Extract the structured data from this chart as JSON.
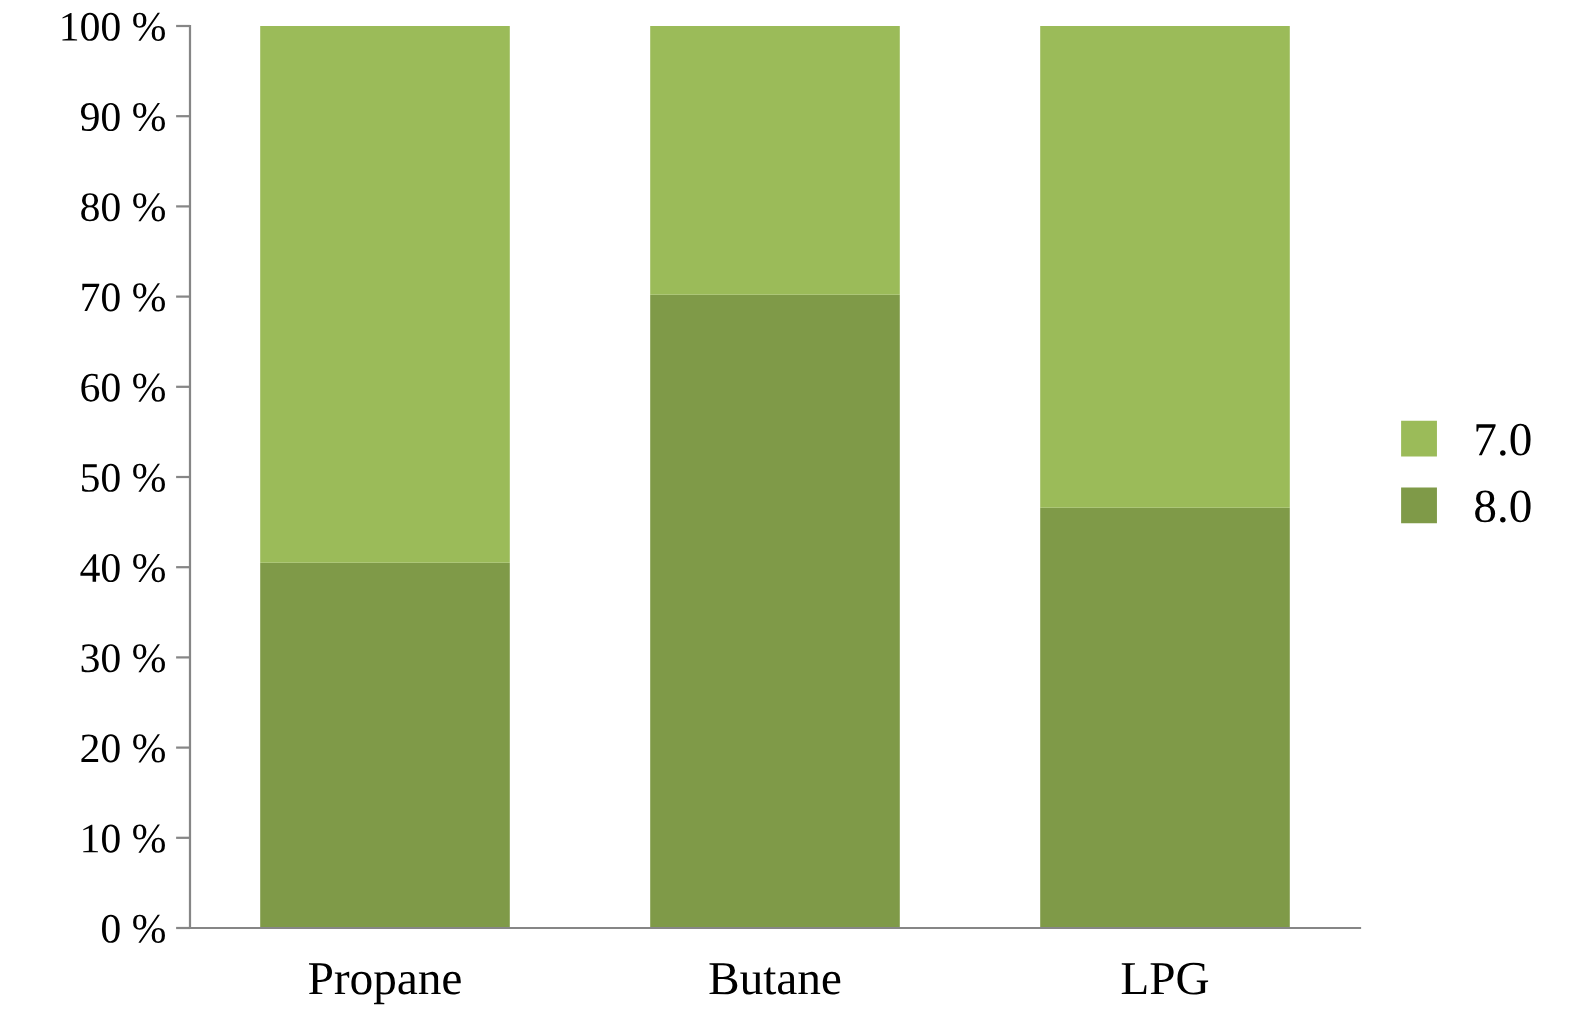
{
  "chart_data": {
    "type": "bar",
    "stacked": true,
    "categories": [
      "Propane",
      "Butane",
      "LPG"
    ],
    "series": [
      {
        "name": "8.0",
        "color": "#7f9a48",
        "values": [
          40.5,
          70.2,
          46.6
        ]
      },
      {
        "name": "7.0",
        "color": "#9bbb59",
        "values": [
          59.5,
          29.8,
          53.4
        ]
      }
    ],
    "ylim": [
      0,
      100
    ],
    "yticks": [
      {
        "value": 0,
        "label": "0 %"
      },
      {
        "value": 10,
        "label": "10 %"
      },
      {
        "value": 20,
        "label": "20 %"
      },
      {
        "value": 30,
        "label": "30 %"
      },
      {
        "value": 40,
        "label": "40 %"
      },
      {
        "value": 50,
        "label": "50 %"
      },
      {
        "value": 60,
        "label": "60 %"
      },
      {
        "value": 70,
        "label": "70 %"
      },
      {
        "value": 80,
        "label": "80 %"
      },
      {
        "value": 90,
        "label": "90 %"
      },
      {
        "value": 100,
        "label": "100 %"
      }
    ],
    "legend": "right",
    "grid": false
  }
}
